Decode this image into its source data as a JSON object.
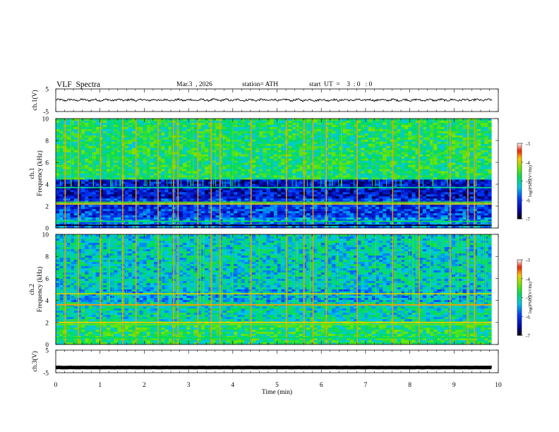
{
  "header": {
    "title": "VLF  Spectra",
    "date": "Mar.3  , 2026",
    "station": "station= ATH",
    "start": "start  UT  =    3  : 0   : 0"
  },
  "chart_data": [
    {
      "type": "line",
      "panel": "ch1-waveform",
      "ylabel": "ch.1(V)",
      "ylim": [
        -5,
        5
      ],
      "yticks": [
        "5",
        "-5"
      ],
      "xlim": [
        0,
        10
      ],
      "series": [
        {
          "color": "#000000",
          "approx_mean": 0.1,
          "approx_amplitude": 0.5
        }
      ]
    },
    {
      "type": "heatmap",
      "panel": "ch1-spectrogram",
      "ylabel_lines": [
        "ch.1",
        "Frequency (kHz)"
      ],
      "ylim": [
        0,
        10
      ],
      "yticks": [
        "0",
        "2",
        "4",
        "6",
        "8",
        "10"
      ],
      "xlim": [
        0,
        10
      ],
      "colorbar": {
        "label": "log(PSD)(V²/Hz)",
        "range": [
          -7,
          -3
        ],
        "ticks": [
          "-3",
          "-4",
          "-5",
          "-6",
          "-7"
        ]
      },
      "bands_khz": [
        {
          "lo": 4.5,
          "hi": 10,
          "level": -4.8
        },
        {
          "lo": 2.6,
          "hi": 4.5,
          "level": -6.3
        },
        {
          "lo": 0.9,
          "hi": 2.6,
          "level": -6.0
        },
        {
          "lo": 0,
          "hi": 0.9,
          "level": -5.6
        }
      ],
      "lines_khz": [
        {
          "f": 3.7,
          "level": -5.0
        },
        {
          "f": 2.35,
          "level": -4.4
        },
        {
          "f": 2.2,
          "level": -3.9
        },
        {
          "f": 0.6,
          "level": -4.8
        },
        {
          "f": 0.25,
          "level": -6.9
        }
      ],
      "strong_impulses_min": [
        0.2,
        0.5,
        1.0,
        1.5,
        1.8,
        2.3,
        2.65,
        2.75,
        3.2,
        3.5,
        3.7,
        4.4,
        5.2,
        5.6,
        5.8,
        6.1,
        6.8,
        7.6,
        8.2,
        8.9,
        9.3,
        9.45
      ]
    },
    {
      "type": "heatmap",
      "panel": "ch2-spectrogram",
      "ylabel_lines": [
        "ch.2",
        "Frequency (kHz)"
      ],
      "ylim": [
        0,
        10
      ],
      "yticks": [
        "0",
        "2",
        "4",
        "6",
        "8",
        "10"
      ],
      "xlim": [
        0,
        10
      ],
      "colorbar": {
        "label": "log(PSD)(V²/Hz)",
        "range": [
          -7,
          -3
        ],
        "ticks": [
          "-3",
          "-4",
          "-5",
          "-6",
          "-7"
        ]
      },
      "bands_khz": [
        {
          "lo": 5.0,
          "hi": 10,
          "level": -5.2
        },
        {
          "lo": 3.8,
          "hi": 5.0,
          "level": -5.4
        },
        {
          "lo": 2.2,
          "hi": 3.8,
          "level": -5.1
        },
        {
          "lo": 0,
          "hi": 2.2,
          "level": -4.8
        }
      ],
      "lines_khz": [
        {
          "f": 4.6,
          "level": -4.0
        },
        {
          "f": 3.6,
          "level": -3.7
        },
        {
          "f": 2.0,
          "level": -3.9
        },
        {
          "f": 1.8,
          "level": -4.4
        },
        {
          "f": 0.6,
          "level": -4.8
        }
      ],
      "strong_impulses_min": [
        0.2,
        0.5,
        1.0,
        1.5,
        1.8,
        2.3,
        2.65,
        2.75,
        3.2,
        3.5,
        3.7,
        4.4,
        5.2,
        5.6,
        5.8,
        6.1,
        6.8,
        7.6,
        8.2,
        8.9,
        9.3,
        9.45
      ]
    },
    {
      "type": "line",
      "panel": "ch3-waveform",
      "ylabel": "ch.3(V)",
      "ylim": [
        -5,
        5
      ],
      "yticks": [
        "5",
        "-5"
      ],
      "xlim": [
        0,
        10
      ],
      "xlabel": "Time  (min)",
      "xticks": [
        "0",
        "1",
        "2",
        "3",
        "4",
        "5",
        "6",
        "7",
        "8",
        "9",
        "10"
      ],
      "series": [
        {
          "color": "#000000",
          "approx_mean": -2.7,
          "approx_amplitude": 0.05
        }
      ]
    }
  ]
}
